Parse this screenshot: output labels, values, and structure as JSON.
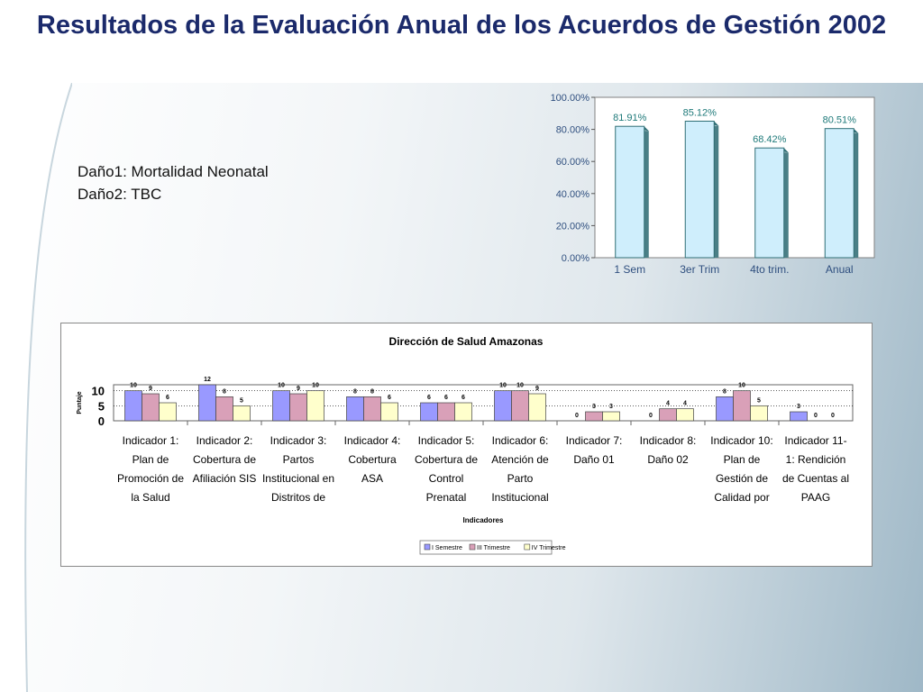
{
  "slide": {
    "title": "Resultados de la Evaluación Anual de los Acuerdos de Gestión 2002",
    "notes": [
      "Daño1: Mortalidad Neonatal",
      "Daño2: TBC"
    ],
    "colors": {
      "title": "#1b2a6b",
      "bar_top": "#cfeefc",
      "bar_top_side": "#4a7f86"
    }
  },
  "chart_data": [
    {
      "type": "bar",
      "categories": [
        "1 Sem",
        "3er Trim",
        "4to trim.",
        "Anual"
      ],
      "values": [
        81.91,
        85.12,
        68.42,
        80.51
      ],
      "data_labels": [
        "81.91%",
        "85.12%",
        "68.42%",
        "80.51%"
      ],
      "ylim": [
        0,
        100
      ],
      "yticks": [
        "0.00%",
        "20.00%",
        "40.00%",
        "60.00%",
        "80.00%",
        "100.00%"
      ],
      "title": "",
      "xlabel": "",
      "ylabel": "",
      "grid": false,
      "legend": "none"
    },
    {
      "type": "bar",
      "title": "Dirección de Salud Amazonas",
      "xlabel": "Indicadores",
      "ylabel": "Puntaje",
      "ylim": [
        0,
        12
      ],
      "yticks": [
        "0",
        "5",
        "10"
      ],
      "legend": "bottom",
      "grid": true,
      "categories": [
        [
          "Indicador 1:",
          "Plan de",
          "Promoción de",
          "la Salud"
        ],
        [
          "Indicador 2:",
          "Cobertura de",
          "Afiliación SIS"
        ],
        [
          "Indicador 3:",
          "Partos",
          "Institucional en",
          "Distritos de"
        ],
        [
          "Indicador 4:",
          "Cobertura",
          "ASA"
        ],
        [
          "Indicador 5:",
          "Cobertura de",
          "Control",
          "Prenatal"
        ],
        [
          "Indicador 6:",
          "Atención de",
          "Parto",
          "Institucional"
        ],
        [
          "Indicador 7:",
          "Daño 01"
        ],
        [
          "Indicador 8:",
          "Daño 02"
        ],
        [
          "Indicador 10:",
          "Plan de",
          "Gestión de",
          "Calidad por"
        ],
        [
          "Indicador 11-",
          "1: Rendición",
          "de Cuentas al",
          "PAAG"
        ]
      ],
      "series": [
        {
          "name": "I Semestre",
          "values": [
            10,
            12,
            10,
            8,
            6,
            10,
            0,
            0,
            8,
            3
          ],
          "color": "#9999ff"
        },
        {
          "name": "III Trimestre",
          "values": [
            9,
            8,
            9,
            8,
            6,
            10,
            3,
            4,
            10,
            0
          ],
          "color": "#d9a0b8"
        },
        {
          "name": "IV Trimestre",
          "values": [
            6,
            5,
            10,
            6,
            6,
            9,
            3,
            4,
            5,
            0
          ],
          "color": "#ffffcc"
        }
      ]
    }
  ]
}
